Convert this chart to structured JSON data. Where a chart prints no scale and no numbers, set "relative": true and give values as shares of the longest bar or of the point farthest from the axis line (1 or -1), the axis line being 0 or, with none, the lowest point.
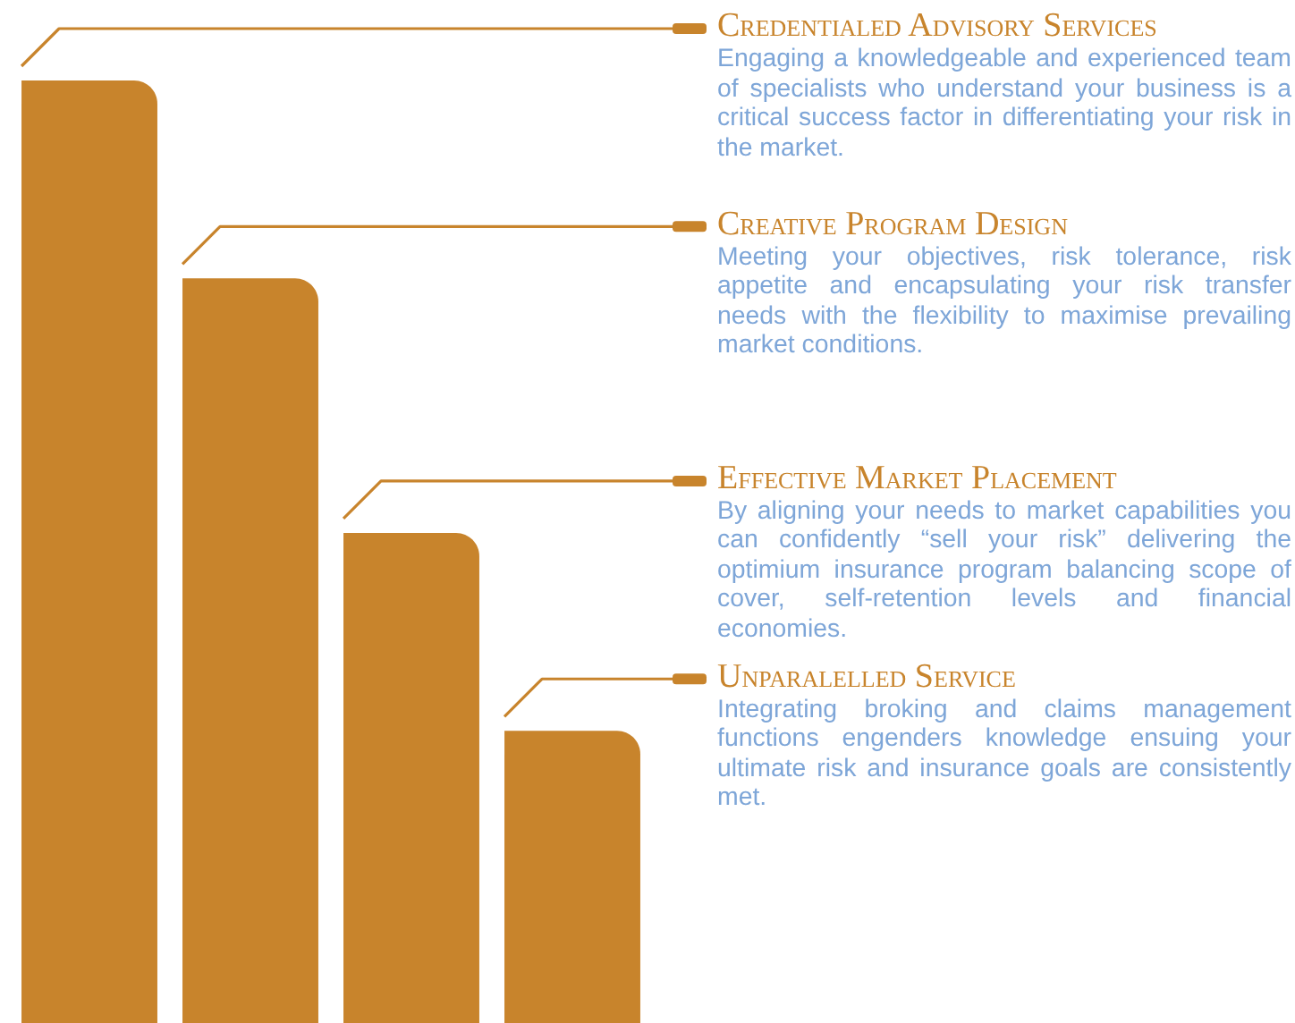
{
  "chart_data": {
    "type": "bar",
    "relative": true,
    "categories": [
      null,
      null,
      null,
      null
    ],
    "values": [
      1,
      0.79,
      0.52,
      0.31
    ],
    "color": "#c8842c",
    "annotations": [
      "Credentialed Advisory Services",
      "Engaging a knowledgeable and experienced team of specialists who understand your business is a critical success factor in differentiating your risk in the market.",
      "Creative Program Design",
      "Meeting your objectives, risk tolerance, risk appetite and encapsulating your risk transfer needs with the flexibility to maximise prevailing market conditions.",
      "Effective Market Placement",
      "By aligning your needs to market capabilities you can confidently “sell your risk” delivering the optimium insurance program balancing scope of cover, self-retention levels and financial economies.",
      "Unparalelled Service",
      "Integrating broking and claims management functions engenders knowledge ensuing your ultimate risk and insurance goals are consistently met."
    ]
  }
}
